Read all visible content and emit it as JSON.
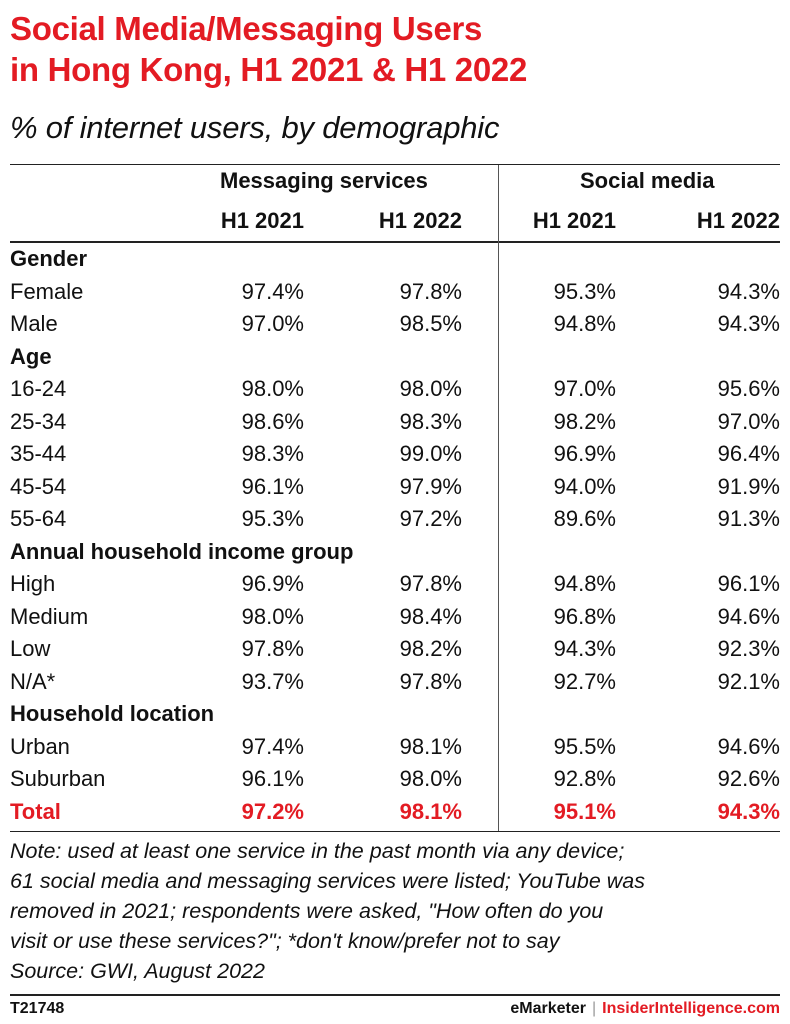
{
  "title_line1": "Social Media/Messaging Users",
  "title_line2": "in Hong Kong, H1 2021 & H1 2022",
  "subtitle": "% of internet users, by demographic",
  "groups": {
    "messaging": "Messaging services",
    "social": "Social media"
  },
  "headers": [
    "H1 2021",
    "H1 2022",
    "H1 2021",
    "H1 2022"
  ],
  "rows": [
    {
      "label": "Gender",
      "section": true
    },
    {
      "label": "Female",
      "values": [
        "97.4%",
        "97.8%",
        "95.3%",
        "94.3%"
      ]
    },
    {
      "label": "Male",
      "values": [
        "97.0%",
        "98.5%",
        "94.8%",
        "94.3%"
      ]
    },
    {
      "label": "Age",
      "section": true
    },
    {
      "label": "16-24",
      "values": [
        "98.0%",
        "98.0%",
        "97.0%",
        "95.6%"
      ]
    },
    {
      "label": "25-34",
      "values": [
        "98.6%",
        "98.3%",
        "98.2%",
        "97.0%"
      ]
    },
    {
      "label": "35-44",
      "values": [
        "98.3%",
        "99.0%",
        "96.9%",
        "96.4%"
      ]
    },
    {
      "label": "45-54",
      "values": [
        "96.1%",
        "97.9%",
        "94.0%",
        "91.9%"
      ]
    },
    {
      "label": "55-64",
      "values": [
        "95.3%",
        "97.2%",
        "89.6%",
        "91.3%"
      ]
    },
    {
      "label": "Annual household income group",
      "section": true
    },
    {
      "label": "High",
      "values": [
        "96.9%",
        "97.8%",
        "94.8%",
        "96.1%"
      ]
    },
    {
      "label": "Medium",
      "values": [
        "98.0%",
        "98.4%",
        "96.8%",
        "94.6%"
      ]
    },
    {
      "label": "Low",
      "values": [
        "97.8%",
        "98.2%",
        "94.3%",
        "92.3%"
      ]
    },
    {
      "label": "N/A*",
      "values": [
        "93.7%",
        "97.8%",
        "92.7%",
        "92.1%"
      ]
    },
    {
      "label": "Household location",
      "section": true
    },
    {
      "label": "Urban",
      "values": [
        "97.4%",
        "98.1%",
        "95.5%",
        "94.6%"
      ]
    },
    {
      "label": "Suburban",
      "values": [
        "96.1%",
        "98.0%",
        "92.8%",
        "92.6%"
      ]
    },
    {
      "label": "Total",
      "total": true,
      "values": [
        "97.2%",
        "98.1%",
        "95.1%",
        "94.3%"
      ]
    }
  ],
  "note_lines": [
    "Note: used at least one service in the past month via any device;",
    "61 social media and messaging services were listed; YouTube was",
    "removed in 2021; respondents were asked, \"How often do you",
    "visit or use these services?\"; *don't know/prefer not to say",
    "Source: GWI, August 2022"
  ],
  "footer": {
    "id": "T21748",
    "brand1": "eMarketer",
    "separator": "|",
    "brand2": "InsiderIntelligence.com"
  },
  "colors": {
    "accent": "#e31b23",
    "text": "#111111"
  }
}
